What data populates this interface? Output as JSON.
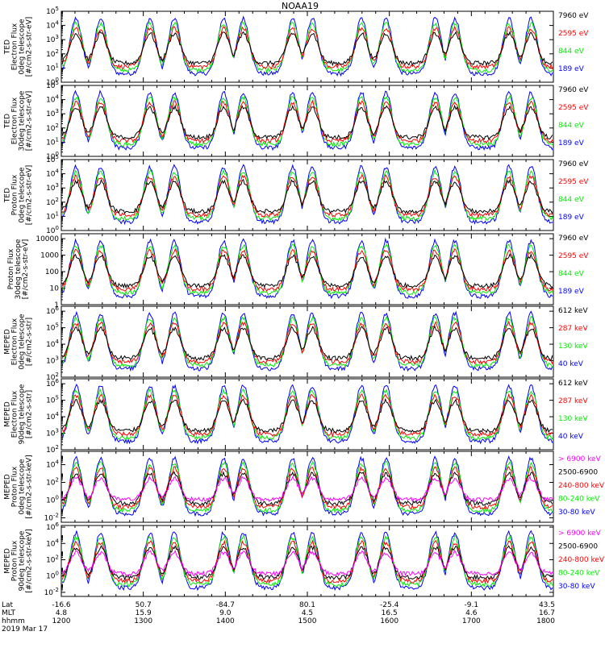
{
  "chart_data": {
    "type": "line",
    "title": "NOAA19",
    "x_range": [
      "1200",
      "1800"
    ],
    "panels": [
      {
        "ylabel": [
          "TED",
          "Electron Flux",
          "0deg telescope",
          "[#/cm2-s-str-eV]"
        ],
        "yticks": [
          {
            "exp": "0"
          },
          {
            "exp": "1"
          },
          {
            "exp": "2"
          },
          {
            "exp": "3"
          },
          {
            "exp": "4"
          },
          {
            "exp": "5"
          }
        ],
        "ylog_range": [
          0,
          5
        ],
        "legend": [
          {
            "label": "7960 eV",
            "color": "#000000"
          },
          {
            "label": "2595 eV",
            "color": "#ff0000"
          },
          {
            "label": "844 eV",
            "color": "#00ee00"
          },
          {
            "label": "189 eV",
            "color": "#0000ff"
          }
        ]
      },
      {
        "ylabel": [
          "TED",
          "Electron Flux",
          "30deg telescope",
          "[#/cm2-s-str-eV]"
        ],
        "yticks": [
          {
            "exp": "0"
          },
          {
            "exp": "1"
          },
          {
            "exp": "2"
          },
          {
            "exp": "3"
          },
          {
            "exp": "4"
          },
          {
            "exp": "5"
          }
        ],
        "ylog_range": [
          0,
          5
        ],
        "legend": [
          {
            "label": "7960 eV",
            "color": "#000000"
          },
          {
            "label": "2595 eV",
            "color": "#ff0000"
          },
          {
            "label": "844 eV",
            "color": "#00ee00"
          },
          {
            "label": "189 eV",
            "color": "#0000ff"
          }
        ]
      },
      {
        "ylabel": [
          "TED",
          "Proton Flux",
          "0deg telescope",
          "[#/cm2-s-str-eV]"
        ],
        "yticks": [
          {
            "exp": "0"
          },
          {
            "exp": "1"
          },
          {
            "exp": "2"
          },
          {
            "exp": "3"
          },
          {
            "exp": "4"
          },
          {
            "exp": "5"
          }
        ],
        "ylog_range": [
          0,
          5
        ],
        "legend": [
          {
            "label": "7960 eV",
            "color": "#000000"
          },
          {
            "label": "2595 eV",
            "color": "#ff0000"
          },
          {
            "label": "844 eV",
            "color": "#00ee00"
          },
          {
            "label": "189 eV",
            "color": "#0000ff"
          }
        ]
      },
      {
        "ylabel": [
          "Proton Flux",
          "30deg telescope",
          "[#/cm2-s-str-eV]"
        ],
        "yticks": [
          {
            "text": "1"
          },
          {
            "text": "10"
          },
          {
            "text": "100"
          },
          {
            "text": "1000"
          },
          {
            "text": "10000"
          }
        ],
        "ylog_range": [
          0,
          4.3
        ],
        "legend": [
          {
            "label": "7960 eV",
            "color": "#000000"
          },
          {
            "label": "2595 eV",
            "color": "#ff0000"
          },
          {
            "label": "844 eV",
            "color": "#00ee00"
          },
          {
            "label": "189 eV",
            "color": "#0000ff"
          }
        ]
      },
      {
        "ylabel": [
          "MEPED",
          "Electron Flux",
          "0deg telescope",
          "[#/cm2-s-str]"
        ],
        "yticks": [
          {
            "exp": "2"
          },
          {
            "exp": "3"
          },
          {
            "exp": "4"
          },
          {
            "exp": "5"
          },
          {
            "exp": "6"
          }
        ],
        "ylog_range": [
          2,
          6.3
        ],
        "legend": [
          {
            "label": "612 keV",
            "color": "#000000"
          },
          {
            "label": "287 keV",
            "color": "#ff0000"
          },
          {
            "label": "130 keV",
            "color": "#00ee00"
          },
          {
            "label": "40 keV",
            "color": "#0000ff"
          }
        ]
      },
      {
        "ylabel": [
          "MEPED",
          "Electron Flux",
          "90deg telescope",
          "[#/cm2-s-str]"
        ],
        "yticks": [
          {
            "exp": "2"
          },
          {
            "exp": "3"
          },
          {
            "exp": "4"
          },
          {
            "exp": "5"
          },
          {
            "exp": "6"
          }
        ],
        "ylog_range": [
          2,
          6.3
        ],
        "legend": [
          {
            "label": "612 keV",
            "color": "#000000"
          },
          {
            "label": "287 keV",
            "color": "#ff0000"
          },
          {
            "label": "130 keV",
            "color": "#00ee00"
          },
          {
            "label": "40 keV",
            "color": "#0000ff"
          }
        ]
      },
      {
        "ylabel": [
          "MEPED",
          "Proton Flux",
          "0deg telescope",
          "[#/cm2-s-str-keV]"
        ],
        "yticks": [
          {
            "exp": "-2"
          },
          {
            "exp": "0"
          },
          {
            "exp": "2"
          },
          {
            "exp": "4"
          }
        ],
        "ylog_range": [
          -2.5,
          5.5
        ],
        "legend": [
          {
            "label": "> 6900 keV",
            "color": "#ff00ff"
          },
          {
            "label": "2500-6900",
            "color": "#000000"
          },
          {
            "label": "240-800 keV",
            "color": "#ff0000"
          },
          {
            "label": "80-240 keV",
            "color": "#00ee00"
          },
          {
            "label": "30-80 keV",
            "color": "#0000ff"
          }
        ]
      },
      {
        "ylabel": [
          "MEPED",
          "Proton Flux",
          "90deg telescope",
          "[#/cm2-s-str-keV]"
        ],
        "yticks": [
          {
            "exp": "-2"
          },
          {
            "exp": "0"
          },
          {
            "exp": "2"
          },
          {
            "exp": "4"
          },
          {
            "exp": "6"
          }
        ],
        "ylog_range": [
          -2.5,
          6.2
        ],
        "legend": [
          {
            "label": "> 6900 keV",
            "color": "#ff00ff"
          },
          {
            "label": "2500-6900",
            "color": "#000000"
          },
          {
            "label": "240-800 keV",
            "color": "#ff0000"
          },
          {
            "label": "80-240 keV",
            "color": "#00ee00"
          },
          {
            "label": "30-80 keV",
            "color": "#0000ff"
          }
        ]
      }
    ],
    "footer": {
      "row_labels": [
        "Lat",
        "MLT",
        "hhmm"
      ],
      "date": "2019 Mar 17",
      "columns": [
        {
          "lat": "-16.6",
          "mlt": "4.8",
          "hhmm": "1200"
        },
        {
          "lat": "50.7",
          "mlt": "15.9",
          "hhmm": "1300"
        },
        {
          "lat": "-84.7",
          "mlt": "9.0",
          "hhmm": "1400"
        },
        {
          "lat": "80.1",
          "mlt": "4.5",
          "hhmm": "1500"
        },
        {
          "lat": "-25.4",
          "mlt": "16.5",
          "hhmm": "1600"
        },
        {
          "lat": "-9.1",
          "mlt": "4.6",
          "hhmm": "1700"
        },
        {
          "lat": "43.5",
          "mlt": "16.7",
          "hhmm": "1800"
        }
      ]
    }
  }
}
